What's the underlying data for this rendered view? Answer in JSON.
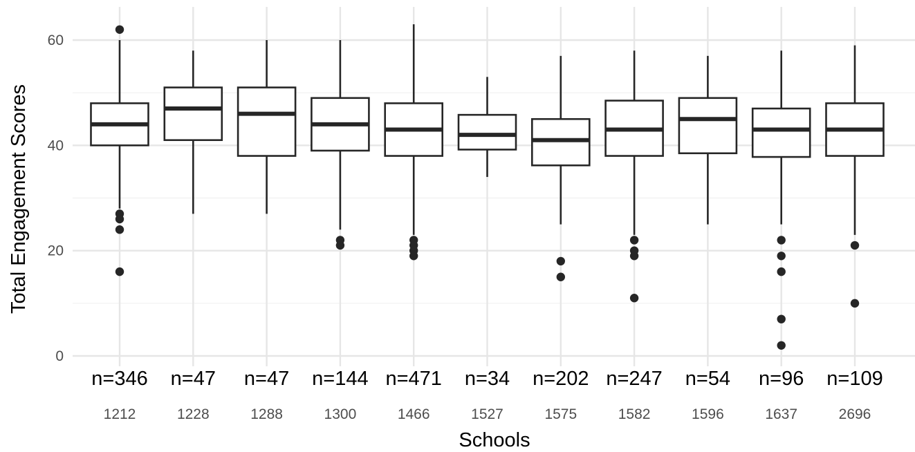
{
  "chart_data": {
    "type": "boxplot",
    "xlabel": "Schools",
    "ylabel": "Total Engagement Scores",
    "ylim": [
      0,
      65
    ],
    "yticks": [
      0,
      20,
      40,
      60
    ],
    "grid": true,
    "categories": [
      "1212",
      "1228",
      "1288",
      "1300",
      "1466",
      "1527",
      "1575",
      "1582",
      "1596",
      "1637",
      "2696"
    ],
    "counts": [
      "n=346",
      "n=47",
      "n=47",
      "n=144",
      "n=471",
      "n=34",
      "n=202",
      "n=247",
      "n=54",
      "n=96",
      "n=109"
    ],
    "boxes": [
      {
        "school": "1212",
        "whisker_low": 28,
        "q1": 40,
        "median": 44,
        "q3": 48,
        "whisker_high": 60,
        "outliers": [
          62,
          27,
          26,
          24,
          16
        ]
      },
      {
        "school": "1228",
        "whisker_low": 27,
        "q1": 41,
        "median": 47,
        "q3": 51,
        "whisker_high": 58,
        "outliers": []
      },
      {
        "school": "1288",
        "whisker_low": 27,
        "q1": 38,
        "median": 46,
        "q3": 51,
        "whisker_high": 60,
        "outliers": []
      },
      {
        "school": "1300",
        "whisker_low": 24,
        "q1": 39,
        "median": 44,
        "q3": 49,
        "whisker_high": 60,
        "outliers": [
          22,
          21
        ]
      },
      {
        "school": "1466",
        "whisker_low": 23,
        "q1": 38,
        "median": 43,
        "q3": 48,
        "whisker_high": 63,
        "outliers": [
          22,
          21,
          20,
          19
        ]
      },
      {
        "school": "1527",
        "whisker_low": 34,
        "q1": 39.2,
        "median": 42,
        "q3": 45.8,
        "whisker_high": 53,
        "outliers": []
      },
      {
        "school": "1575",
        "whisker_low": 25,
        "q1": 36.2,
        "median": 41,
        "q3": 45,
        "whisker_high": 57,
        "outliers": [
          18,
          15
        ]
      },
      {
        "school": "1582",
        "whisker_low": 23,
        "q1": 38,
        "median": 43,
        "q3": 48.5,
        "whisker_high": 58,
        "outliers": [
          22,
          20,
          19,
          11
        ]
      },
      {
        "school": "1596",
        "whisker_low": 25,
        "q1": 38.5,
        "median": 45,
        "q3": 49,
        "whisker_high": 57,
        "outliers": []
      },
      {
        "school": "1637",
        "whisker_low": 25,
        "q1": 37.8,
        "median": 43,
        "q3": 47,
        "whisker_high": 58,
        "outliers": [
          22,
          19,
          16,
          7,
          2
        ]
      },
      {
        "school": "2696",
        "whisker_low": 23,
        "q1": 38,
        "median": 43,
        "q3": 48,
        "whisker_high": 59,
        "outliers": [
          21,
          10
        ]
      }
    ],
    "colors": {
      "box_stroke": "#262626",
      "box_fill": "#ffffff",
      "outlier": "#262626",
      "grid": "#e6e6e6",
      "tick_text": "#4d4d4d",
      "title_text": "#000000"
    }
  }
}
